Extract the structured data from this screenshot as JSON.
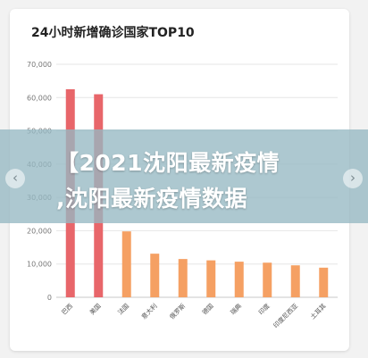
{
  "chart_data": {
    "type": "bar",
    "title": "24小时新增确诊国家TOP10",
    "categories": [
      "巴西",
      "美国",
      "法国",
      "意大利",
      "俄罗斯",
      "德国",
      "瑞典",
      "印度",
      "印度尼西亚",
      "土耳其"
    ],
    "values": [
      62500,
      61000,
      19800,
      13100,
      11500,
      11100,
      10700,
      10400,
      9600,
      8900
    ],
    "bar_colors": [
      "#e8666a",
      "#e8666a",
      "#f5a063",
      "#f5a063",
      "#f5a063",
      "#f5a063",
      "#f5a063",
      "#f5a063",
      "#f5a063",
      "#f5a063"
    ],
    "yticks": [
      "0",
      "10,000",
      "20,000",
      "30,000",
      "40,000",
      "50,000",
      "60,000",
      "70,000"
    ],
    "ylim": [
      0,
      70000
    ],
    "grid": true,
    "xlabel": "",
    "ylabel": ""
  },
  "banner": {
    "line1": "【2021沈阳最新疫情",
    "line2": ",沈阳最新疫情数据"
  },
  "nav": {
    "prev_icon": "chevron-left-icon",
    "next_icon": "chevron-right-icon",
    "prev_glyph": "‹",
    "next_glyph": "›"
  }
}
